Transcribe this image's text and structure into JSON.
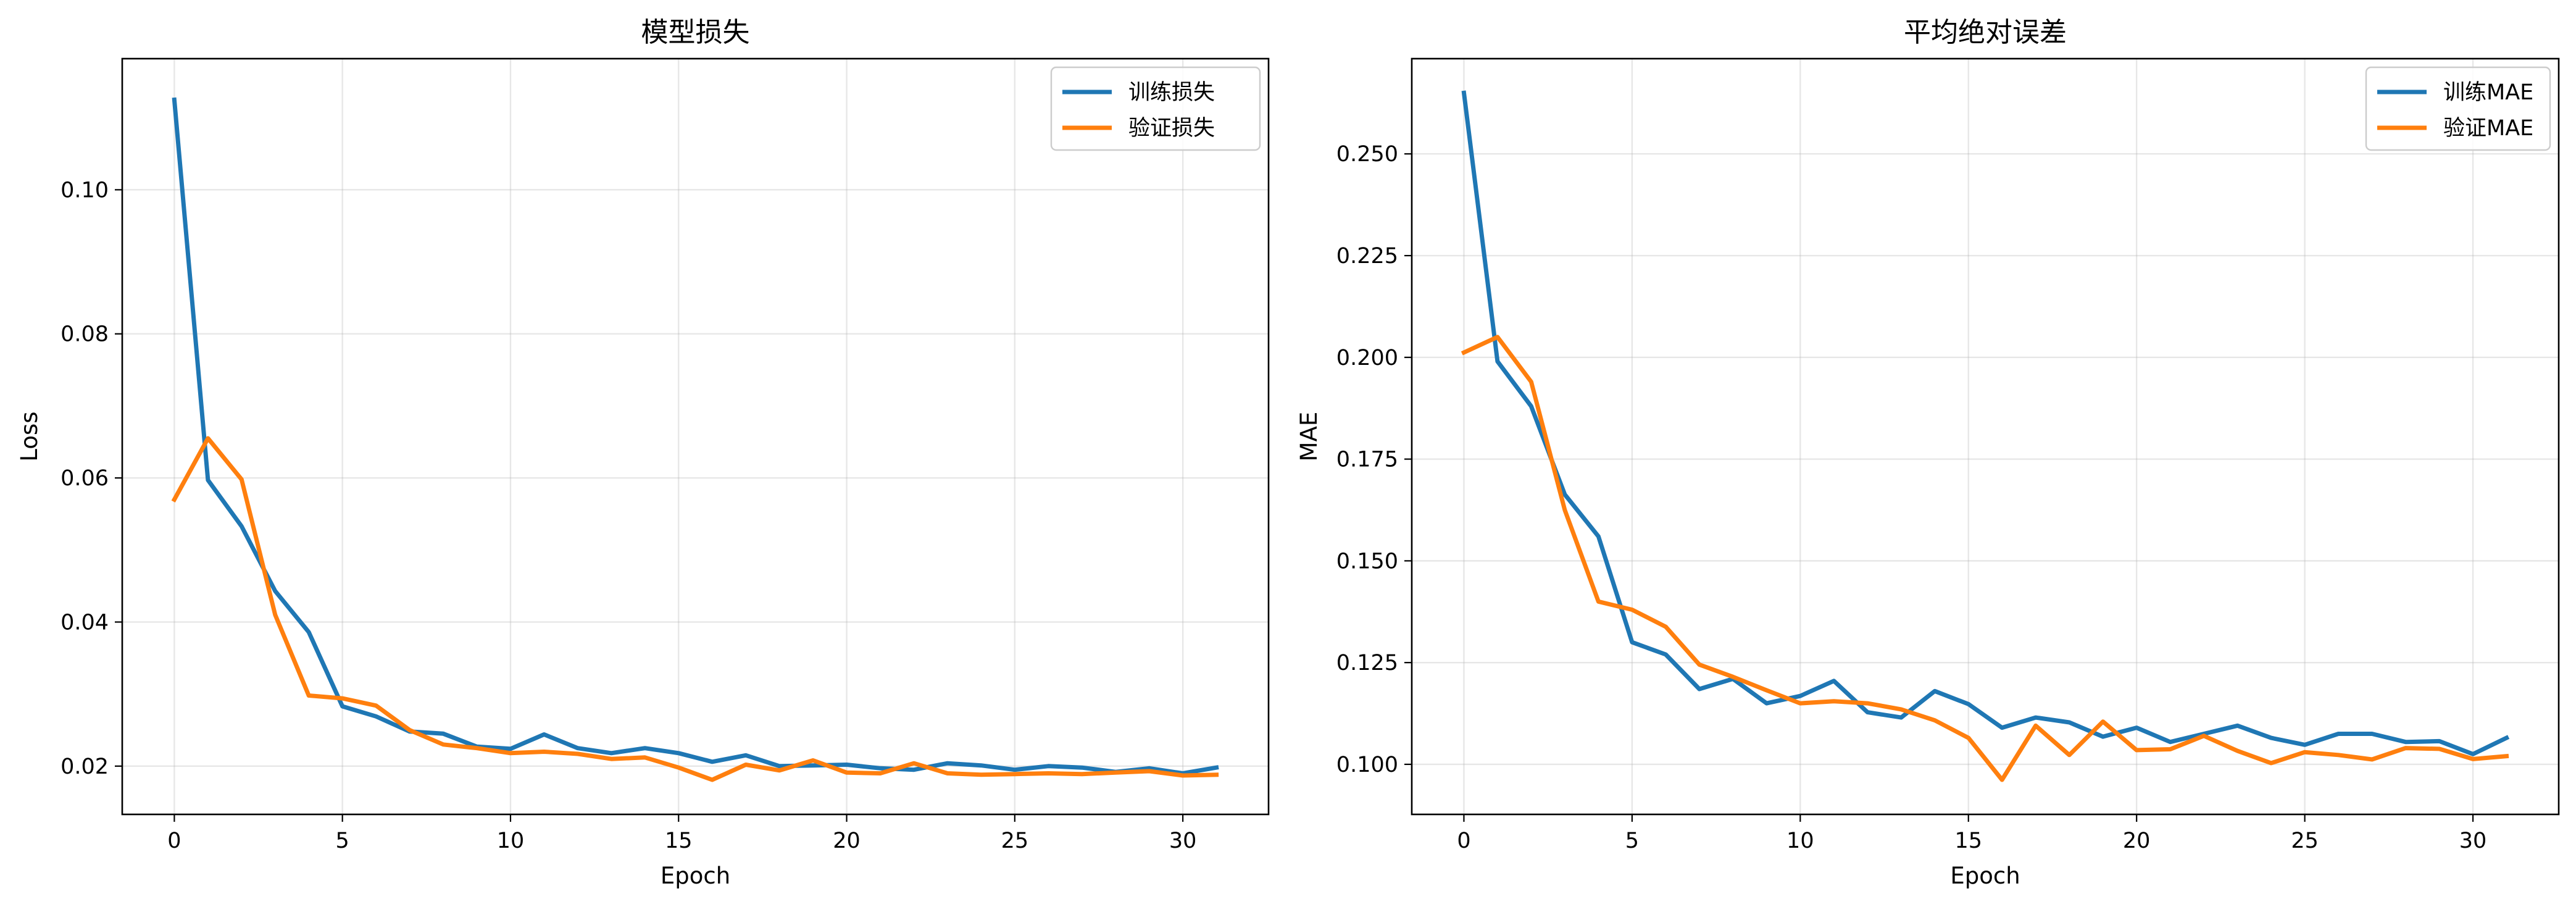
{
  "chart_data": [
    {
      "type": "line",
      "title": "模型损失",
      "xlabel": "Epoch",
      "ylabel": "Loss",
      "xlim": [
        -1.55,
        32.55
      ],
      "ylim": [
        0.0133,
        0.1182
      ],
      "xticks": [
        0,
        5,
        10,
        15,
        20,
        25,
        30
      ],
      "yticks": [
        0.02,
        0.04,
        0.06,
        0.08,
        0.1
      ],
      "ytick_labels": [
        "0.02",
        "0.04",
        "0.06",
        "0.08",
        "0.10"
      ],
      "grid": true,
      "legend_position": "upper right",
      "x": [
        0,
        1,
        2,
        3,
        4,
        5,
        6,
        7,
        8,
        9,
        10,
        11,
        12,
        13,
        14,
        15,
        16,
        17,
        18,
        19,
        20,
        21,
        22,
        23,
        24,
        25,
        26,
        27,
        28,
        29,
        30,
        31
      ],
      "series": [
        {
          "name": "训练损失",
          "color": "#1f77b4",
          "values": [
            0.1125,
            0.0597,
            0.0533,
            0.0443,
            0.0386,
            0.0283,
            0.0269,
            0.0248,
            0.0245,
            0.0227,
            0.0224,
            0.0244,
            0.0225,
            0.0218,
            0.0225,
            0.0218,
            0.0206,
            0.0215,
            0.02,
            0.0201,
            0.0202,
            0.0197,
            0.0195,
            0.0204,
            0.0201,
            0.0195,
            0.02,
            0.0198,
            0.0192,
            0.0197,
            0.019,
            0.0198
          ]
        },
        {
          "name": "验证损失",
          "color": "#ff7f0e",
          "values": [
            0.057,
            0.0655,
            0.0598,
            0.041,
            0.0298,
            0.0294,
            0.0284,
            0.025,
            0.023,
            0.0225,
            0.0218,
            0.022,
            0.0217,
            0.021,
            0.0212,
            0.0198,
            0.0181,
            0.0202,
            0.0194,
            0.0208,
            0.0191,
            0.019,
            0.0204,
            0.019,
            0.0188,
            0.0189,
            0.019,
            0.0189,
            0.0191,
            0.0193,
            0.0187,
            0.0188
          ]
        }
      ]
    },
    {
      "type": "line",
      "title": "平均绝对误差",
      "xlabel": "Epoch",
      "ylabel": "MAE",
      "xlim": [
        -1.55,
        32.55
      ],
      "ylim": [
        0.0877,
        0.2734
      ],
      "xticks": [
        0,
        5,
        10,
        15,
        20,
        25,
        30
      ],
      "yticks": [
        0.1,
        0.125,
        0.15,
        0.175,
        0.2,
        0.225,
        0.25
      ],
      "ytick_labels": [
        "0.100",
        "0.125",
        "0.150",
        "0.175",
        "0.200",
        "0.225",
        "0.250"
      ],
      "grid": true,
      "legend_position": "upper right",
      "x": [
        0,
        1,
        2,
        3,
        4,
        5,
        6,
        7,
        8,
        9,
        10,
        11,
        12,
        13,
        14,
        15,
        16,
        17,
        18,
        19,
        20,
        21,
        22,
        23,
        24,
        25,
        26,
        27,
        28,
        29,
        30,
        31
      ],
      "series": [
        {
          "name": "训练MAE",
          "color": "#1f77b4",
          "values": [
            0.265,
            0.199,
            0.188,
            0.1663,
            0.156,
            0.13,
            0.127,
            0.1185,
            0.121,
            0.115,
            0.1168,
            0.1205,
            0.1128,
            0.1115,
            0.118,
            0.1148,
            0.109,
            0.1115,
            0.1103,
            0.1068,
            0.109,
            0.1055,
            0.1075,
            0.1095,
            0.1065,
            0.1048,
            0.1075,
            0.1075,
            0.1055,
            0.1057,
            0.1025,
            0.1065
          ]
        },
        {
          "name": "验证MAE",
          "color": "#ff7f0e",
          "values": [
            0.2012,
            0.205,
            0.194,
            0.1625,
            0.14,
            0.138,
            0.1338,
            0.1245,
            0.1215,
            0.1182,
            0.115,
            0.1155,
            0.115,
            0.1135,
            0.1108,
            0.1065,
            0.0962,
            0.1095,
            0.1023,
            0.1105,
            0.1035,
            0.1037,
            0.107,
            0.1033,
            0.1003,
            0.103,
            0.1023,
            0.1012,
            0.104,
            0.1038,
            0.1013,
            0.102
          ]
        }
      ]
    }
  ]
}
